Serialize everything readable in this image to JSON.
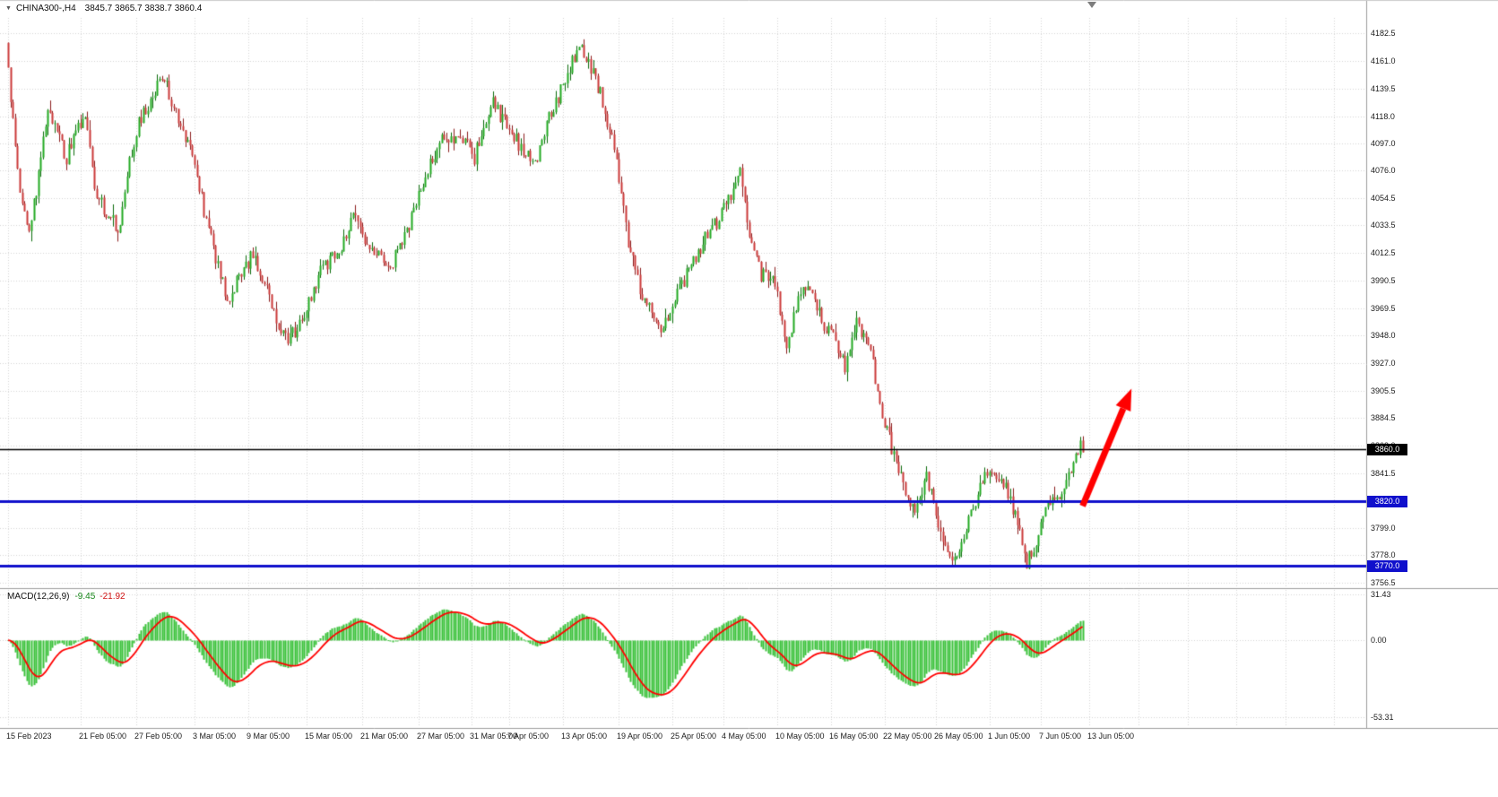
{
  "window_header": {
    "dropdown_icon": "▼",
    "symbol_period": "CHINA300-,H4",
    "ohlc_text": "3845.7 3865.7 3838.7 3860.4"
  },
  "colors": {
    "background": "#ffffff",
    "grid": "#d6d6d6",
    "separator": "#9e9e9e",
    "axis_text": "#1b1b1b",
    "bull_fill": "#22aa22",
    "bull_wick": "#0c6b0c",
    "bear_fill": "#cc3939",
    "bear_wick": "#8c1d1d",
    "macd_histogram": "#3bc23b",
    "macd_signal": "#ff0000",
    "arrow": "#ff0000",
    "hline_black": "#000000",
    "hline_blue": "#1010cc"
  },
  "chart_data": {
    "type": "candlestick",
    "symbol": "CHINA300",
    "timeframe": "H4",
    "quote": {
      "open": "3845.7",
      "high": "3865.7",
      "low": "3838.7",
      "close": "3860.4"
    },
    "price_axis": {
      "max": 4182.5,
      "min": 3756.5,
      "ticks": [
        {
          "v": 4182.5,
          "label": "4182.5"
        },
        {
          "v": 4161.0,
          "label": "4161.0"
        },
        {
          "v": 4139.5,
          "label": "4139.5"
        },
        {
          "v": 4118.0,
          "label": "4118.0"
        },
        {
          "v": 4097.0,
          "label": "4097.0"
        },
        {
          "v": 4076.0,
          "label": "4076.0"
        },
        {
          "v": 4054.5,
          "label": "4054.5"
        },
        {
          "v": 4033.5,
          "label": "4033.5"
        },
        {
          "v": 4012.5,
          "label": "4012.5"
        },
        {
          "v": 3990.5,
          "label": "3990.5"
        },
        {
          "v": 3969.5,
          "label": "3969.5"
        },
        {
          "v": 3948.0,
          "label": "3948.0"
        },
        {
          "v": 3927.0,
          "label": "3927.0"
        },
        {
          "v": 3905.5,
          "label": "3905.5"
        },
        {
          "v": 3884.5,
          "label": "3884.5"
        },
        {
          "v": 3863.0,
          "label": "3863.0"
        },
        {
          "v": 3841.5,
          "label": "3841.5"
        },
        {
          "v": 3820.0,
          "label": "3820.0"
        },
        {
          "v": 3799.0,
          "label": "3799.0"
        },
        {
          "v": 3778.0,
          "label": "3778.0"
        },
        {
          "v": 3756.5,
          "label": "3756.5"
        }
      ]
    },
    "hlines": [
      {
        "price": 3860.0,
        "label": "3860.0",
        "color": "#000000",
        "width": 1.5
      },
      {
        "price": 3820.0,
        "label": "3820.0",
        "color": "#1010cc",
        "width": 3
      },
      {
        "price": 3770.0,
        "label": "3770.0",
        "color": "#1010cc",
        "width": 3
      }
    ],
    "time_axis": [
      {
        "i": 0,
        "label": "15 Feb 2023"
      },
      {
        "i": 31,
        "label": "21 Feb 05:00"
      },
      {
        "i": 55,
        "label": "27 Feb 05:00"
      },
      {
        "i": 80,
        "label": "3 Mar 05:00"
      },
      {
        "i": 103,
        "label": "9 Mar 05:00"
      },
      {
        "i": 128,
        "label": "15 Mar 05:00"
      },
      {
        "i": 152,
        "label": "21 Mar 05:00"
      },
      {
        "i": 176,
        "label": "27 Mar 05:00"
      },
      {
        "i": 199,
        "label": "31 Mar 05:00"
      },
      {
        "i": 215,
        "label": "7 Apr 05:00"
      },
      {
        "i": 238,
        "label": "13 Apr 05:00"
      },
      {
        "i": 262,
        "label": "19 Apr 05:00"
      },
      {
        "i": 285,
        "label": "25 Apr 05:00"
      },
      {
        "i": 307,
        "label": "4 May 05:00"
      },
      {
        "i": 330,
        "label": "10 May 05:00"
      },
      {
        "i": 353,
        "label": "16 May 05:00"
      },
      {
        "i": 376,
        "label": "22 May 05:00"
      },
      {
        "i": 398,
        "label": "26 May 05:00"
      },
      {
        "i": 421,
        "label": "1 Jun 05:00"
      },
      {
        "i": 443,
        "label": "7 Jun 05:00"
      },
      {
        "i": 464,
        "label": "13 Jun 05:00"
      }
    ],
    "candles": {
      "count": 462,
      "seed": 13,
      "body_noise": 6,
      "wick_noise": 9,
      "price_path": [
        [
          0,
          4175
        ],
        [
          3,
          4115
        ],
        [
          6,
          4060
        ],
        [
          10,
          4032
        ],
        [
          14,
          4070
        ],
        [
          18,
          4128
        ],
        [
          23,
          4100
        ],
        [
          26,
          4085
        ],
        [
          30,
          4108
        ],
        [
          34,
          4115
        ],
        [
          39,
          4055
        ],
        [
          45,
          4040
        ],
        [
          49,
          4028
        ],
        [
          53,
          4085
        ],
        [
          58,
          4118
        ],
        [
          63,
          4135
        ],
        [
          67,
          4150
        ],
        [
          72,
          4125
        ],
        [
          80,
          4085
        ],
        [
          87,
          4030
        ],
        [
          95,
          3975
        ],
        [
          100,
          3992
        ],
        [
          106,
          4012
        ],
        [
          112,
          3985
        ],
        [
          117,
          3958
        ],
        [
          121,
          3945
        ],
        [
          128,
          3962
        ],
        [
          135,
          3998
        ],
        [
          143,
          4012
        ],
        [
          149,
          4040
        ],
        [
          156,
          4018
        ],
        [
          164,
          3998
        ],
        [
          172,
          4028
        ],
        [
          180,
          4072
        ],
        [
          187,
          4098
        ],
        [
          195,
          4106
        ],
        [
          201,
          4086
        ],
        [
          208,
          4130
        ],
        [
          213,
          4116
        ],
        [
          220,
          4096
        ],
        [
          227,
          4078
        ],
        [
          233,
          4118
        ],
        [
          240,
          4146
        ],
        [
          246,
          4172
        ],
        [
          251,
          4155
        ],
        [
          256,
          4130
        ],
        [
          262,
          4085
        ],
        [
          266,
          4030
        ],
        [
          271,
          3990
        ],
        [
          276,
          3968
        ],
        [
          282,
          3953
        ],
        [
          287,
          3975
        ],
        [
          293,
          4000
        ],
        [
          299,
          4020
        ],
        [
          305,
          4036
        ],
        [
          310,
          4052
        ],
        [
          315,
          4076
        ],
        [
          319,
          4030
        ],
        [
          324,
          3996
        ],
        [
          330,
          3988
        ],
        [
          335,
          3940
        ],
        [
          340,
          3976
        ],
        [
          345,
          3986
        ],
        [
          350,
          3958
        ],
        [
          355,
          3945
        ],
        [
          360,
          3924
        ],
        [
          365,
          3958
        ],
        [
          371,
          3936
        ],
        [
          376,
          3886
        ],
        [
          381,
          3856
        ],
        [
          385,
          3832
        ],
        [
          390,
          3812
        ],
        [
          395,
          3840
        ],
        [
          400,
          3800
        ],
        [
          405,
          3776
        ],
        [
          409,
          3783
        ],
        [
          414,
          3808
        ],
        [
          419,
          3836
        ],
        [
          423,
          3847
        ],
        [
          427,
          3836
        ],
        [
          431,
          3820
        ],
        [
          435,
          3795
        ],
        [
          438,
          3772
        ],
        [
          442,
          3790
        ],
        [
          446,
          3812
        ],
        [
          451,
          3822
        ],
        [
          455,
          3838
        ],
        [
          461,
          3862
        ]
      ]
    },
    "macd": {
      "name": "MACD(12,26,9)",
      "value_main": "-9.45",
      "value_signal": "-21.92",
      "fast": 12,
      "slow": 26,
      "signal": 9,
      "ticks": [
        {
          "v": 31.43,
          "label": "31.43"
        },
        {
          "v": 0,
          "label": "0.00"
        },
        {
          "v": -53.31,
          "label": "-53.31"
        }
      ]
    },
    "arrow": {
      "from_i": 461,
      "from_price": 3816,
      "to_i": 482,
      "to_price": 3907,
      "color": "#ff0000"
    }
  }
}
